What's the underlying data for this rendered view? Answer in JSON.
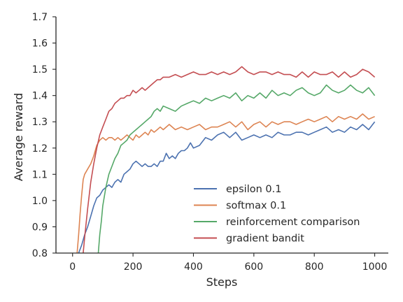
{
  "chart_data": {
    "type": "line",
    "title": "",
    "xlabel": "Steps",
    "ylabel": "Average reward",
    "xlim": [
      -55,
      1045
    ],
    "ylim": [
      0.8,
      1.7
    ],
    "xticks": [
      {
        "value": 0,
        "label": "0"
      },
      {
        "value": 200,
        "label": "200"
      },
      {
        "value": 400,
        "label": "400"
      },
      {
        "value": 600,
        "label": "600"
      },
      {
        "value": 800,
        "label": "800"
      },
      {
        "value": 1000,
        "label": "1000"
      }
    ],
    "yticks": [
      {
        "value": 0.8,
        "label": "0.8"
      },
      {
        "value": 0.9,
        "label": "0.9"
      },
      {
        "value": 1.0,
        "label": "1.0"
      },
      {
        "value": 1.1,
        "label": "1.1"
      },
      {
        "value": 1.2,
        "label": "1.2"
      },
      {
        "value": 1.3,
        "label": "1.3"
      },
      {
        "value": 1.4,
        "label": "1.4"
      },
      {
        "value": 1.5,
        "label": "1.5"
      },
      {
        "value": 1.6,
        "label": "1.6"
      },
      {
        "value": 1.7,
        "label": "1.7"
      }
    ],
    "grid": false,
    "legend_position": "lower-right",
    "series": [
      {
        "name": "epsilon 0.1",
        "color": "#4c72b0",
        "x": [
          20,
          30,
          40,
          50,
          60,
          70,
          80,
          90,
          100,
          110,
          120,
          130,
          140,
          150,
          160,
          170,
          180,
          190,
          200,
          210,
          220,
          230,
          240,
          250,
          260,
          270,
          280,
          290,
          300,
          310,
          320,
          330,
          340,
          350,
          360,
          370,
          380,
          390,
          400,
          420,
          440,
          460,
          480,
          500,
          520,
          540,
          560,
          580,
          600,
          620,
          640,
          660,
          680,
          700,
          720,
          740,
          760,
          780,
          800,
          820,
          840,
          860,
          880,
          900,
          920,
          940,
          960,
          980,
          1000
        ],
        "y": [
          0.8,
          0.83,
          0.87,
          0.9,
          0.94,
          0.98,
          1.01,
          1.02,
          1.04,
          1.05,
          1.06,
          1.05,
          1.07,
          1.08,
          1.07,
          1.1,
          1.11,
          1.12,
          1.14,
          1.15,
          1.14,
          1.13,
          1.14,
          1.13,
          1.13,
          1.14,
          1.13,
          1.15,
          1.15,
          1.18,
          1.16,
          1.17,
          1.16,
          1.18,
          1.19,
          1.19,
          1.2,
          1.22,
          1.2,
          1.21,
          1.24,
          1.23,
          1.25,
          1.26,
          1.24,
          1.26,
          1.23,
          1.24,
          1.25,
          1.24,
          1.25,
          1.24,
          1.26,
          1.25,
          1.25,
          1.26,
          1.26,
          1.25,
          1.26,
          1.27,
          1.28,
          1.26,
          1.27,
          1.26,
          1.28,
          1.27,
          1.29,
          1.27,
          1.3
        ]
      },
      {
        "name": "softmax 0.1",
        "color": "#dd8452",
        "x": [
          15,
          20,
          25,
          30,
          35,
          40,
          50,
          60,
          70,
          80,
          90,
          100,
          110,
          120,
          130,
          140,
          150,
          160,
          170,
          180,
          190,
          200,
          210,
          220,
          230,
          240,
          250,
          260,
          270,
          280,
          290,
          300,
          320,
          340,
          360,
          380,
          400,
          420,
          440,
          460,
          480,
          500,
          520,
          540,
          560,
          580,
          600,
          620,
          640,
          660,
          680,
          700,
          720,
          740,
          760,
          780,
          800,
          820,
          840,
          860,
          880,
          900,
          920,
          940,
          960,
          980,
          1000
        ],
        "y": [
          0.8,
          0.87,
          0.95,
          1.02,
          1.08,
          1.1,
          1.12,
          1.14,
          1.17,
          1.21,
          1.23,
          1.24,
          1.23,
          1.24,
          1.24,
          1.23,
          1.24,
          1.23,
          1.24,
          1.25,
          1.24,
          1.23,
          1.25,
          1.24,
          1.25,
          1.26,
          1.25,
          1.27,
          1.26,
          1.27,
          1.28,
          1.27,
          1.29,
          1.27,
          1.28,
          1.27,
          1.28,
          1.29,
          1.27,
          1.28,
          1.28,
          1.29,
          1.3,
          1.28,
          1.3,
          1.27,
          1.29,
          1.3,
          1.28,
          1.3,
          1.29,
          1.3,
          1.3,
          1.29,
          1.3,
          1.31,
          1.3,
          1.31,
          1.32,
          1.3,
          1.32,
          1.31,
          1.32,
          1.31,
          1.33,
          1.31,
          1.32
        ]
      },
      {
        "name": "reinforcement comparison",
        "color": "#55a868",
        "x": [
          85,
          90,
          95,
          100,
          110,
          120,
          130,
          140,
          150,
          160,
          170,
          180,
          190,
          200,
          210,
          220,
          230,
          240,
          250,
          260,
          270,
          280,
          290,
          300,
          320,
          340,
          360,
          380,
          400,
          420,
          440,
          460,
          480,
          500,
          520,
          540,
          560,
          580,
          600,
          620,
          640,
          660,
          680,
          700,
          720,
          740,
          760,
          780,
          800,
          820,
          840,
          860,
          880,
          900,
          920,
          940,
          960,
          980,
          1000
        ],
        "y": [
          0.8,
          0.87,
          0.92,
          0.98,
          1.05,
          1.1,
          1.13,
          1.16,
          1.18,
          1.21,
          1.22,
          1.23,
          1.25,
          1.26,
          1.27,
          1.28,
          1.29,
          1.3,
          1.31,
          1.32,
          1.34,
          1.35,
          1.34,
          1.36,
          1.35,
          1.34,
          1.36,
          1.37,
          1.38,
          1.37,
          1.39,
          1.38,
          1.39,
          1.4,
          1.39,
          1.41,
          1.38,
          1.4,
          1.39,
          1.41,
          1.39,
          1.42,
          1.4,
          1.41,
          1.4,
          1.42,
          1.43,
          1.41,
          1.4,
          1.41,
          1.44,
          1.42,
          1.41,
          1.42,
          1.44,
          1.42,
          1.41,
          1.43,
          1.4
        ]
      },
      {
        "name": "gradient bandit",
        "color": "#c44e52",
        "x": [
          35,
          40,
          50,
          60,
          70,
          80,
          90,
          100,
          110,
          120,
          130,
          140,
          150,
          160,
          170,
          180,
          190,
          200,
          210,
          220,
          230,
          240,
          250,
          260,
          270,
          280,
          290,
          300,
          320,
          340,
          360,
          380,
          400,
          420,
          440,
          460,
          480,
          500,
          520,
          540,
          560,
          580,
          600,
          620,
          640,
          660,
          680,
          700,
          720,
          740,
          760,
          780,
          800,
          820,
          840,
          860,
          880,
          900,
          920,
          940,
          960,
          980,
          1000
        ],
        "y": [
          0.8,
          0.86,
          0.97,
          1.07,
          1.14,
          1.2,
          1.25,
          1.28,
          1.31,
          1.34,
          1.35,
          1.37,
          1.38,
          1.39,
          1.39,
          1.4,
          1.4,
          1.42,
          1.41,
          1.42,
          1.43,
          1.42,
          1.43,
          1.44,
          1.45,
          1.46,
          1.46,
          1.47,
          1.47,
          1.48,
          1.47,
          1.48,
          1.49,
          1.48,
          1.48,
          1.49,
          1.48,
          1.49,
          1.48,
          1.49,
          1.51,
          1.49,
          1.48,
          1.49,
          1.49,
          1.48,
          1.49,
          1.48,
          1.48,
          1.47,
          1.49,
          1.47,
          1.49,
          1.48,
          1.48,
          1.49,
          1.47,
          1.49,
          1.47,
          1.48,
          1.5,
          1.49,
          1.47
        ]
      }
    ]
  }
}
